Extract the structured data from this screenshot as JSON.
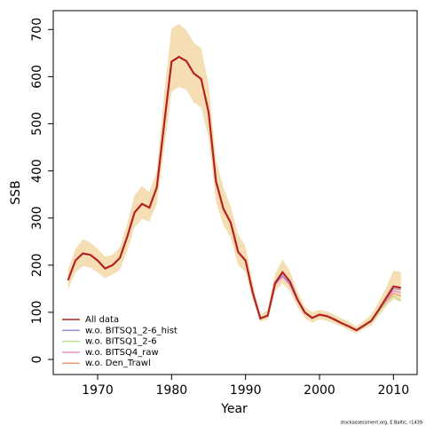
{
  "chart_data": {
    "type": "line",
    "xlabel": "Year",
    "ylabel": "SSB",
    "footnote": "stockassessment.org, E Baltic, r1439",
    "x": [
      1966,
      1967,
      1968,
      1969,
      1970,
      1971,
      1972,
      1973,
      1974,
      1975,
      1976,
      1977,
      1978,
      1979,
      1980,
      1981,
      1982,
      1983,
      1984,
      1985,
      1986,
      1987,
      1988,
      1989,
      1990,
      1991,
      1992,
      1993,
      1994,
      1995,
      1996,
      1997,
      1998,
      1999,
      2000,
      2001,
      2002,
      2003,
      2004,
      2005,
      2006,
      2007,
      2008,
      2009,
      2010,
      2011
    ],
    "band": {
      "color": "#f5deb3",
      "upper": [
        190,
        235,
        255,
        248,
        235,
        218,
        222,
        238,
        288,
        348,
        368,
        355,
        400,
        565,
        702,
        712,
        698,
        672,
        660,
        585,
        425,
        365,
        325,
        265,
        240,
        160,
        95,
        105,
        182,
        212,
        188,
        145,
        112,
        100,
        105,
        102,
        95,
        87,
        80,
        70,
        82,
        95,
        122,
        152,
        188,
        186
      ],
      "lower": [
        148,
        185,
        198,
        195,
        185,
        172,
        180,
        190,
        230,
        280,
        298,
        292,
        330,
        445,
        568,
        578,
        572,
        545,
        535,
        470,
        335,
        285,
        258,
        200,
        185,
        125,
        80,
        85,
        145,
        162,
        145,
        112,
        88,
        78,
        85,
        82,
        76,
        70,
        62,
        55,
        65,
        72,
        92,
        112,
        128,
        122
      ]
    },
    "series": [
      {
        "name": "All data",
        "color": "#b22222",
        "values": [
          168,
          210,
          225,
          222,
          210,
          193,
          200,
          215,
          260,
          312,
          330,
          322,
          365,
          500,
          632,
          642,
          633,
          607,
          595,
          525,
          378,
          320,
          290,
          228,
          210,
          140,
          87,
          93,
          162,
          185,
          165,
          128,
          100,
          88,
          95,
          92,
          85,
          77,
          70,
          62,
          72,
          82,
          105,
          130,
          155,
          152
        ]
      },
      {
        "name": "w.o. BITSQ1_2-6_hist",
        "color": "#a08cd0",
        "values": [
          168,
          210,
          225,
          222,
          210,
          193,
          200,
          215,
          260,
          312,
          330,
          322,
          365,
          500,
          632,
          642,
          633,
          607,
          595,
          525,
          378,
          320,
          290,
          228,
          210,
          140,
          87,
          93,
          160,
          178,
          160,
          126,
          99,
          88,
          95,
          92,
          85,
          77,
          70,
          62,
          72,
          82,
          104,
          128,
          150,
          148
        ]
      },
      {
        "name": "w.o. BITSQ1_2-6",
        "color": "#b8e08c",
        "values": [
          168,
          210,
          225,
          222,
          210,
          193,
          200,
          215,
          260,
          312,
          330,
          322,
          365,
          500,
          632,
          642,
          633,
          607,
          595,
          525,
          378,
          320,
          290,
          228,
          210,
          140,
          87,
          93,
          162,
          185,
          165,
          128,
          100,
          88,
          95,
          92,
          85,
          77,
          70,
          61,
          70,
          79,
          100,
          120,
          135,
          125
        ]
      },
      {
        "name": "w.o. BITSQ4_raw",
        "color": "#f090c8",
        "values": [
          168,
          210,
          225,
          222,
          210,
          193,
          200,
          215,
          260,
          312,
          330,
          322,
          365,
          500,
          632,
          642,
          633,
          607,
          595,
          525,
          378,
          320,
          290,
          228,
          210,
          140,
          87,
          93,
          158,
          175,
          158,
          125,
          98,
          87,
          94,
          91,
          84,
          76,
          69,
          61,
          71,
          80,
          102,
          125,
          145,
          142
        ]
      },
      {
        "name": "w.o. Den_Trawl",
        "color": "#f0a080",
        "values": [
          168,
          210,
          225,
          222,
          210,
          193,
          200,
          215,
          260,
          312,
          330,
          322,
          365,
          500,
          632,
          642,
          633,
          607,
          595,
          525,
          378,
          320,
          290,
          228,
          210,
          140,
          87,
          93,
          162,
          185,
          165,
          128,
          100,
          88,
          95,
          92,
          85,
          77,
          70,
          62,
          71,
          80,
          102,
          123,
          140,
          135
        ]
      }
    ],
    "xlim": [
      1964,
      2013.2
    ],
    "ylim": [
      -32,
      740
    ],
    "xticks": [
      1970,
      1980,
      1990,
      2000,
      2010
    ],
    "yticks": [
      0,
      100,
      200,
      300,
      400,
      500,
      600,
      700
    ],
    "legend": "bottom-left"
  }
}
